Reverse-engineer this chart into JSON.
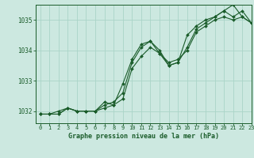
{
  "title": "Graphe pression niveau de la mer (hPa)",
  "background_color": "#cce8e0",
  "grid_color": "#aad4c8",
  "line_color": "#1a5c2a",
  "xlim": [
    -0.5,
    23
  ],
  "ylim": [
    1031.6,
    1035.5
  ],
  "yticks": [
    1032,
    1033,
    1034,
    1035
  ],
  "xticks": [
    0,
    1,
    2,
    3,
    4,
    5,
    6,
    7,
    8,
    9,
    10,
    11,
    12,
    13,
    14,
    15,
    16,
    17,
    18,
    19,
    20,
    21,
    22,
    23
  ],
  "series1_x": [
    0,
    1,
    2,
    3,
    4,
    5,
    6,
    7,
    8,
    9,
    10,
    11,
    12,
    13,
    14,
    15,
    16,
    17,
    18,
    19,
    20,
    21,
    22,
    23
  ],
  "series1_y": [
    1031.9,
    1031.9,
    1031.9,
    1032.1,
    1032.0,
    1032.0,
    1032.0,
    1032.1,
    1032.2,
    1032.4,
    1033.4,
    1033.8,
    1034.1,
    1033.9,
    1033.6,
    1033.7,
    1034.0,
    1034.6,
    1034.8,
    1035.0,
    1035.1,
    1035.0,
    1035.1,
    1034.9
  ],
  "series2_x": [
    0,
    1,
    2,
    3,
    4,
    5,
    6,
    7,
    8,
    9,
    10,
    11,
    12,
    13,
    14,
    15,
    16,
    17,
    18,
    19,
    20,
    21,
    22,
    23
  ],
  "series2_y": [
    1031.9,
    1031.9,
    1031.9,
    1032.1,
    1032.0,
    1032.0,
    1032.0,
    1032.2,
    1032.3,
    1032.6,
    1033.6,
    1034.1,
    1034.3,
    1033.9,
    1033.5,
    1033.6,
    1034.1,
    1034.7,
    1034.9,
    1035.1,
    1035.3,
    1035.1,
    1035.3,
    1034.9
  ],
  "series3_x": [
    0,
    1,
    2,
    3,
    4,
    5,
    6,
    7,
    8,
    9,
    10,
    11,
    12,
    13,
    14,
    15,
    16,
    17,
    18,
    19,
    20,
    21,
    22,
    23
  ],
  "series3_y": [
    1031.9,
    1031.9,
    1032.0,
    1032.1,
    1032.0,
    1032.0,
    1032.0,
    1032.3,
    1032.2,
    1032.9,
    1033.7,
    1034.2,
    1034.3,
    1034.0,
    1033.5,
    1033.6,
    1034.5,
    1034.8,
    1035.0,
    1035.1,
    1035.3,
    1035.5,
    1035.1,
    1034.9
  ]
}
